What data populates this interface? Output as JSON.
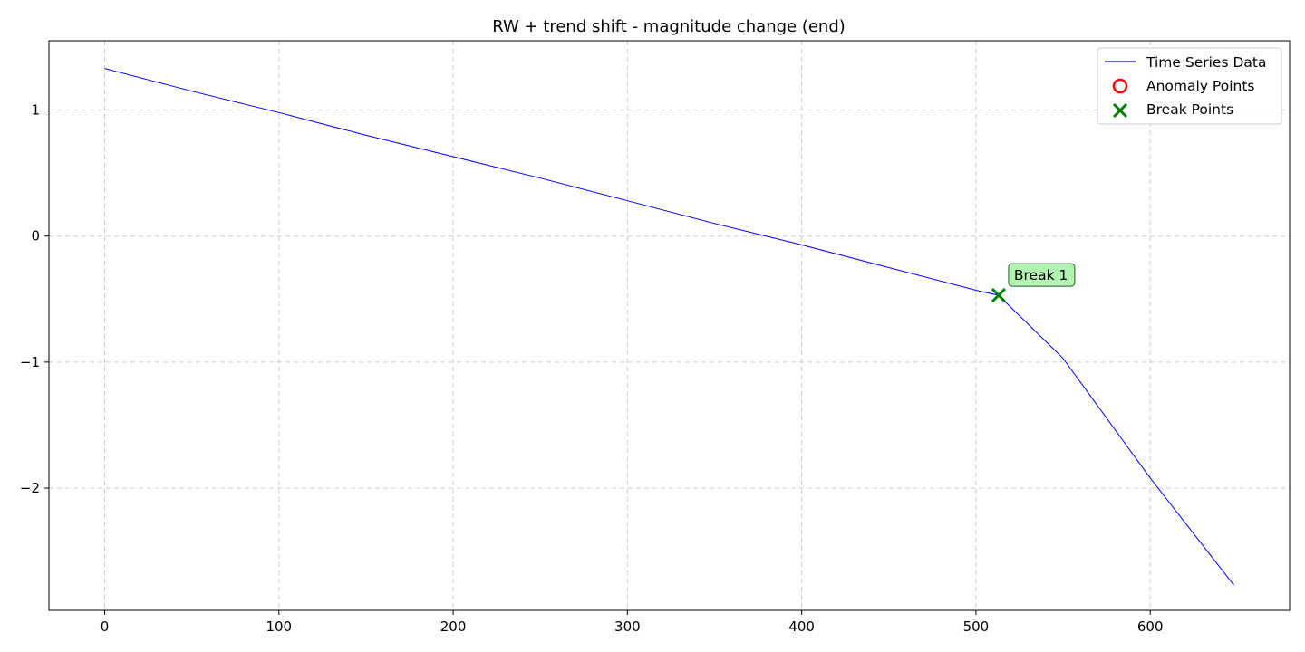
{
  "chart_data": {
    "type": "line",
    "title": "RW + trend shift - magnitude change (end)",
    "xlabel": "",
    "ylabel": "",
    "xlim": [
      -32,
      680
    ],
    "ylim": [
      -2.97,
      1.55
    ],
    "x_ticks": [
      0,
      100,
      200,
      300,
      400,
      500,
      600
    ],
    "y_ticks": [
      1,
      0,
      -1,
      -2
    ],
    "y_tick_labels": [
      "1",
      "0",
      "−1",
      "−2"
    ],
    "grid": true,
    "legend_position": "top-right",
    "legend": [
      "Time Series Data",
      "Anomaly Points",
      "Break Points"
    ],
    "series": [
      {
        "name": "Time Series Data",
        "color": "#0000ff",
        "x": [
          0,
          50,
          100,
          150,
          200,
          250,
          300,
          350,
          400,
          450,
          500,
          513,
          550,
          600,
          648
        ],
        "values": [
          1.33,
          1.15,
          0.98,
          0.8,
          0.63,
          0.46,
          0.28,
          0.1,
          -0.07,
          -0.25,
          -0.43,
          -0.47,
          -0.97,
          -1.92,
          -2.77
        ]
      }
    ],
    "anomaly_points": {
      "color": "#ff0000",
      "points": []
    },
    "break_points": {
      "color": "#008000",
      "points": [
        {
          "x": 513,
          "y": -0.47,
          "label": "Break 1"
        }
      ]
    },
    "annotation_bg": "#b2f2b2"
  }
}
